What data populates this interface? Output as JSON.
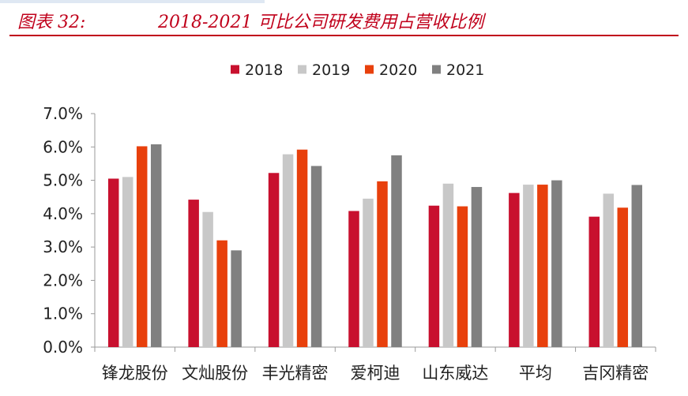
{
  "header": {
    "figure_label": "图表 32:",
    "title": "2018-2021 可比公司研发费用占营收比例"
  },
  "colors": {
    "title_red": "#c0001b",
    "series": [
      "#c8102e",
      "#c8c8c8",
      "#e8400c",
      "#808080"
    ]
  },
  "chart_data": {
    "type": "bar",
    "categories": [
      "锋龙股份",
      "文灿股份",
      "丰光精密",
      "爱柯迪",
      "山东威达",
      "平均",
      "吉冈精密"
    ],
    "series": [
      {
        "name": "2018",
        "values": [
          5.05,
          4.42,
          5.22,
          4.08,
          4.24,
          4.62,
          3.91
        ]
      },
      {
        "name": "2019",
        "values": [
          5.1,
          4.05,
          5.78,
          4.45,
          4.9,
          4.87,
          4.6
        ]
      },
      {
        "name": "2020",
        "values": [
          6.02,
          3.2,
          5.92,
          4.97,
          4.22,
          4.87,
          4.18
        ]
      },
      {
        "name": "2021",
        "values": [
          6.08,
          2.9,
          5.43,
          5.75,
          4.8,
          5.0,
          4.86
        ]
      }
    ],
    "yticks": [
      "0.0%",
      "1.0%",
      "2.0%",
      "3.0%",
      "4.0%",
      "5.0%",
      "6.0%",
      "7.0%"
    ],
    "ylim": [
      0,
      7
    ],
    "y_format": "percent",
    "legend_position": "top-center",
    "grid": false
  }
}
